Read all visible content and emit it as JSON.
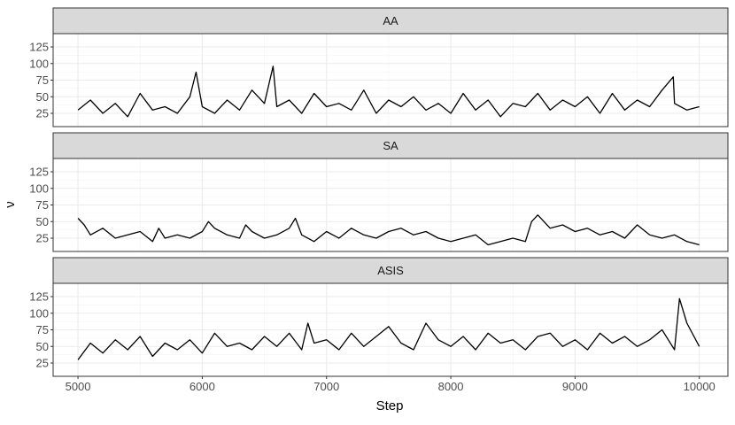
{
  "chart_data": {
    "type": "line",
    "xlabel": "Step",
    "ylabel": "ν",
    "xlim": [
      4800,
      10230
    ],
    "ylim": [
      5,
      145
    ],
    "xticks": [
      5000,
      6000,
      7000,
      8000,
      9000,
      10000
    ],
    "xtick_labels": [
      "5000",
      "6000",
      "7000",
      "8000",
      "9000",
      "10000"
    ],
    "yticks": [
      25,
      50,
      75,
      100,
      125
    ],
    "ytick_labels": [
      "25",
      "50",
      "75",
      "100",
      "125"
    ],
    "grid": true,
    "series_color": "#000000",
    "panels": [
      {
        "name": "AA",
        "x": [
          5000,
          5100,
          5200,
          5300,
          5400,
          5500,
          5600,
          5700,
          5800,
          5900,
          5950,
          6000,
          6100,
          6200,
          6300,
          6400,
          6500,
          6570,
          6600,
          6700,
          6800,
          6900,
          7000,
          7100,
          7200,
          7300,
          7400,
          7500,
          7600,
          7700,
          7800,
          7900,
          8000,
          8100,
          8200,
          8300,
          8400,
          8500,
          8600,
          8700,
          8800,
          8900,
          9000,
          9100,
          9200,
          9300,
          9400,
          9500,
          9600,
          9700,
          9790,
          9800,
          9900,
          10000
        ],
        "y": [
          30,
          45,
          25,
          40,
          20,
          55,
          30,
          35,
          25,
          50,
          87,
          35,
          25,
          45,
          30,
          60,
          40,
          96,
          35,
          45,
          25,
          55,
          35,
          40,
          30,
          60,
          25,
          45,
          35,
          50,
          30,
          40,
          25,
          55,
          30,
          45,
          20,
          40,
          35,
          55,
          30,
          45,
          35,
          50,
          25,
          55,
          30,
          45,
          35,
          60,
          80,
          40,
          30,
          35
        ]
      },
      {
        "name": "SA",
        "x": [
          5000,
          5050,
          5100,
          5200,
          5300,
          5400,
          5500,
          5600,
          5650,
          5700,
          5800,
          5900,
          6000,
          6050,
          6100,
          6200,
          6300,
          6350,
          6400,
          6500,
          6600,
          6700,
          6750,
          6800,
          6900,
          7000,
          7100,
          7200,
          7300,
          7400,
          7500,
          7600,
          7700,
          7800,
          7900,
          8000,
          8100,
          8200,
          8300,
          8400,
          8500,
          8600,
          8650,
          8700,
          8800,
          8900,
          9000,
          9100,
          9200,
          9300,
          9400,
          9500,
          9600,
          9700,
          9800,
          9900,
          10000
        ],
        "y": [
          55,
          45,
          30,
          40,
          25,
          30,
          35,
          20,
          40,
          25,
          30,
          25,
          35,
          50,
          40,
          30,
          25,
          45,
          35,
          25,
          30,
          40,
          55,
          30,
          20,
          35,
          25,
          40,
          30,
          25,
          35,
          40,
          30,
          35,
          25,
          20,
          25,
          30,
          15,
          20,
          25,
          20,
          50,
          60,
          40,
          45,
          35,
          40,
          30,
          35,
          25,
          45,
          30,
          25,
          30,
          20,
          15
        ]
      },
      {
        "name": "ASIS",
        "x": [
          5000,
          5100,
          5200,
          5300,
          5400,
          5500,
          5600,
          5700,
          5800,
          5900,
          6000,
          6100,
          6200,
          6300,
          6400,
          6500,
          6600,
          6700,
          6800,
          6850,
          6900,
          7000,
          7100,
          7200,
          7300,
          7400,
          7500,
          7600,
          7700,
          7800,
          7900,
          8000,
          8100,
          8200,
          8300,
          8400,
          8500,
          8600,
          8700,
          8800,
          8900,
          9000,
          9100,
          9200,
          9300,
          9400,
          9500,
          9600,
          9700,
          9800,
          9840,
          9900,
          10000
        ],
        "y": [
          30,
          55,
          40,
          60,
          45,
          65,
          35,
          55,
          45,
          60,
          40,
          70,
          50,
          55,
          45,
          65,
          50,
          70,
          45,
          85,
          55,
          60,
          45,
          70,
          50,
          65,
          80,
          55,
          45,
          85,
          60,
          50,
          65,
          45,
          70,
          55,
          60,
          45,
          65,
          70,
          50,
          60,
          45,
          70,
          55,
          65,
          50,
          60,
          75,
          45,
          122,
          85,
          50
        ]
      }
    ]
  }
}
